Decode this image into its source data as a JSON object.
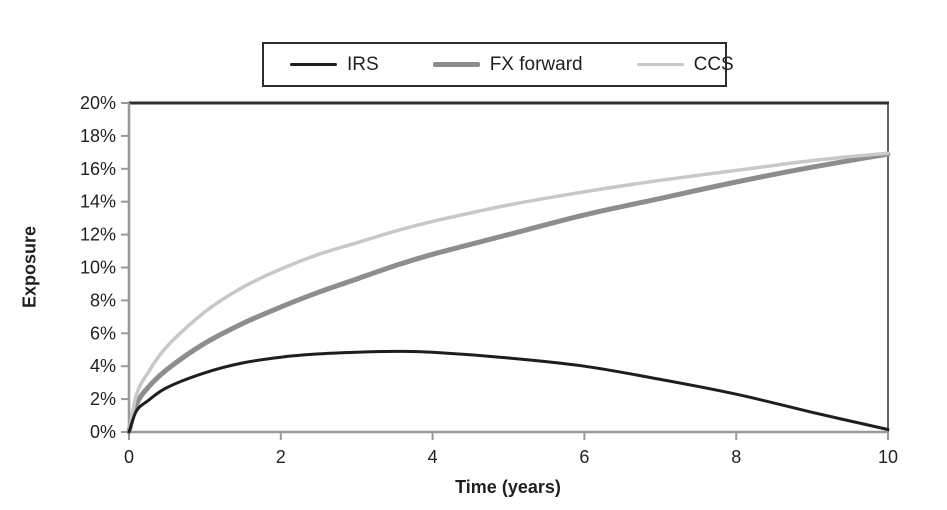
{
  "figure": {
    "background": "#ffffff",
    "text_color": "#231f20"
  },
  "axes": {
    "axis_color": "#9a9a9a",
    "box_top_color": "#2e2e2e",
    "box_right_color": "#3c3c3c",
    "tick_color": "#9a9a9a"
  },
  "legend": {
    "border_color": "#2c2c2c",
    "position": "top-center"
  },
  "chart_data": {
    "type": "line",
    "title": "",
    "xlabel": "Time (years)",
    "ylabel": "Exposure",
    "xlim": [
      0,
      10
    ],
    "ylim": [
      0,
      20
    ],
    "grid": false,
    "legend_position": "top-center",
    "x_ticks": [
      {
        "value": 0,
        "label": "0"
      },
      {
        "value": 2,
        "label": "2"
      },
      {
        "value": 4,
        "label": "4"
      },
      {
        "value": 6,
        "label": "6"
      },
      {
        "value": 8,
        "label": "8"
      },
      {
        "value": 10,
        "label": "10"
      }
    ],
    "y_ticks": [
      {
        "value": 0,
        "label": "0%"
      },
      {
        "value": 2,
        "label": "2%"
      },
      {
        "value": 4,
        "label": "4%"
      },
      {
        "value": 6,
        "label": "6%"
      },
      {
        "value": 8,
        "label": "8%"
      },
      {
        "value": 10,
        "label": "10%"
      },
      {
        "value": 12,
        "label": "12%"
      },
      {
        "value": 14,
        "label": "14%"
      },
      {
        "value": 16,
        "label": "16%"
      },
      {
        "value": 18,
        "label": "18%"
      },
      {
        "value": 20,
        "label": "20%"
      }
    ],
    "x": [
      0,
      0.1,
      0.25,
      0.5,
      1,
      1.5,
      2,
      2.5,
      3,
      3.5,
      4,
      5,
      6,
      7,
      8,
      9,
      10
    ],
    "series": [
      {
        "name": "FX forward",
        "color": "#8d8d8d",
        "width": 5,
        "values": [
          0,
          1.7,
          2.7,
          3.8,
          5.4,
          6.6,
          7.6,
          8.5,
          9.3,
          10.1,
          10.8,
          12.0,
          13.2,
          14.2,
          15.2,
          16.1,
          16.9
        ]
      },
      {
        "name": "CCS",
        "color": "#c8c8c8",
        "width": 3.5,
        "values": [
          0,
          2.3,
          3.6,
          5.2,
          7.3,
          8.8,
          9.9,
          10.8,
          11.5,
          12.2,
          12.8,
          13.8,
          14.6,
          15.3,
          15.9,
          16.5,
          16.95
        ]
      },
      {
        "name": "IRS",
        "color": "#1e1e1e",
        "width": 3,
        "values": [
          0,
          1.3,
          1.9,
          2.7,
          3.6,
          4.2,
          4.55,
          4.75,
          4.85,
          4.9,
          4.85,
          4.5,
          4.0,
          3.2,
          2.3,
          1.2,
          0.15
        ]
      }
    ],
    "legend_order": [
      "IRS",
      "FX forward",
      "CCS"
    ]
  }
}
